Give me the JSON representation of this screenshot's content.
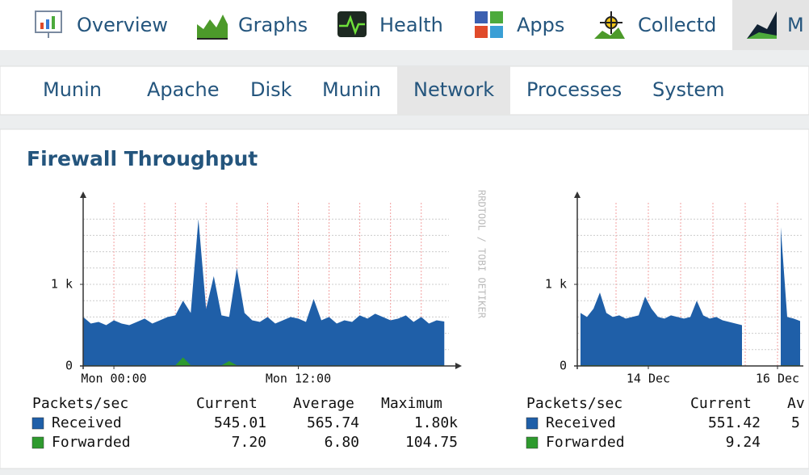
{
  "nav": {
    "tabs": [
      "Overview",
      "Graphs",
      "Health",
      "Apps",
      "Collectd",
      "M"
    ]
  },
  "subnav": {
    "tabs": [
      "Munin",
      "Apache",
      "Disk",
      "Munin",
      "Network",
      "Processes",
      "System"
    ]
  },
  "panel": {
    "title": "Firewall Throughput"
  },
  "graphs": [
    {
      "type": "area",
      "watermark": "RRDTOOL / TOBI OETIKER",
      "xlim": [
        -2,
        21.8
      ],
      "ylim": [
        0,
        2000
      ],
      "xticks": [
        {
          "value": 0,
          "label": "Mon 00:00"
        },
        {
          "value": 12,
          "label": "Mon 12:00"
        }
      ],
      "xgrid": [
        -2,
        0,
        2,
        4,
        6,
        8,
        10,
        12,
        14,
        16,
        18,
        20
      ],
      "yticks": [
        0,
        {
          "value": 1000,
          "label": "1 k"
        }
      ],
      "ygrid": [
        200,
        400,
        600,
        800,
        1000,
        1200,
        1400,
        1600,
        1800
      ],
      "x": [
        -2,
        -1.5,
        -1,
        -0.5,
        0,
        0.5,
        1,
        1.5,
        2,
        2.5,
        3,
        3.5,
        4,
        4.5,
        5,
        5.5,
        6,
        6.5,
        7,
        7.5,
        8,
        8.5,
        9,
        9.5,
        10,
        10.5,
        11,
        11.5,
        12,
        12.5,
        13,
        13.5,
        14,
        14.5,
        15,
        15.5,
        16,
        16.5,
        17,
        17.5,
        18,
        18.5,
        19,
        19.5,
        20,
        20.5,
        21,
        21.5
      ],
      "legend_headers": [
        "Packets/sec",
        "Current",
        "Average",
        "Maximum"
      ],
      "series": [
        {
          "name": "Received",
          "color": "#1f5fa8",
          "stats": [
            "545.01",
            "565.74",
            "1.80k"
          ],
          "values": [
            600,
            520,
            540,
            500,
            560,
            520,
            500,
            540,
            580,
            520,
            560,
            600,
            620,
            800,
            650,
            1800,
            700,
            1100,
            620,
            600,
            1200,
            650,
            560,
            540,
            600,
            520,
            560,
            600,
            580,
            540,
            820,
            560,
            600,
            520,
            560,
            540,
            620,
            580,
            640,
            600,
            560,
            580,
            620,
            540,
            600,
            520,
            560,
            545
          ]
        },
        {
          "name": "Forwarded",
          "color": "#2e9a2e",
          "stats": [
            "7.20",
            "6.80",
            "104.75"
          ],
          "values": [
            7,
            6,
            7,
            6,
            7,
            7,
            6,
            7,
            7,
            6,
            7,
            7,
            8,
            105,
            9,
            7,
            7,
            8,
            7,
            60,
            7,
            7,
            6,
            7,
            7,
            6,
            7,
            7,
            7,
            6,
            7,
            7,
            6,
            7,
            7,
            6,
            7,
            7,
            7,
            6,
            7,
            7,
            7,
            6,
            7,
            7,
            7,
            7
          ]
        }
      ]
    },
    {
      "type": "area",
      "xlim": [
        12.9,
        16.4
      ],
      "ylim": [
        0,
        2000
      ],
      "xticks": [
        {
          "value": 14,
          "label": "14 Dec"
        },
        {
          "value": 16,
          "label": "16 Dec"
        }
      ],
      "xgrid": [
        13.5,
        14,
        14.5,
        15,
        15.5,
        16
      ],
      "yticks": [
        0,
        {
          "value": 1000,
          "label": "1 k"
        }
      ],
      "ygrid": [
        200,
        400,
        600,
        800,
        1000,
        1200,
        1400,
        1600,
        1800
      ],
      "x": [
        12.95,
        13.05,
        13.15,
        13.25,
        13.35,
        13.45,
        13.55,
        13.65,
        13.75,
        13.85,
        13.95,
        14.05,
        14.15,
        14.25,
        14.35,
        14.45,
        14.55,
        14.65,
        14.75,
        14.85,
        14.95,
        15.05,
        15.15,
        15.25,
        15.35,
        15.45,
        15.55,
        15.65,
        15.75,
        15.85,
        15.95,
        16.05,
        16.15,
        16.25,
        16.35
      ],
      "legend_headers": [
        "Packets/sec",
        "Current",
        "Av"
      ],
      "series": [
        {
          "name": "Received",
          "color": "#1f5fa8",
          "stats": [
            "551.42",
            "5"
          ],
          "values": [
            650,
            600,
            700,
            900,
            650,
            600,
            620,
            580,
            600,
            620,
            850,
            700,
            600,
            580,
            620,
            600,
            580,
            600,
            800,
            620,
            580,
            600,
            560,
            540,
            520,
            500,
            null,
            null,
            null,
            null,
            null,
            1700,
            600,
            580,
            551
          ]
        },
        {
          "name": "Forwarded",
          "color": "#2e9a2e",
          "stats": [
            "9.24"
          ],
          "values": [
            9,
            9,
            10,
            9,
            9,
            8,
            9,
            9,
            9,
            10,
            9,
            9,
            9,
            8,
            9,
            9,
            9,
            9,
            10,
            9,
            9,
            9,
            8,
            9,
            9,
            9,
            null,
            null,
            null,
            null,
            null,
            9,
            9,
            9,
            9
          ]
        }
      ]
    }
  ]
}
